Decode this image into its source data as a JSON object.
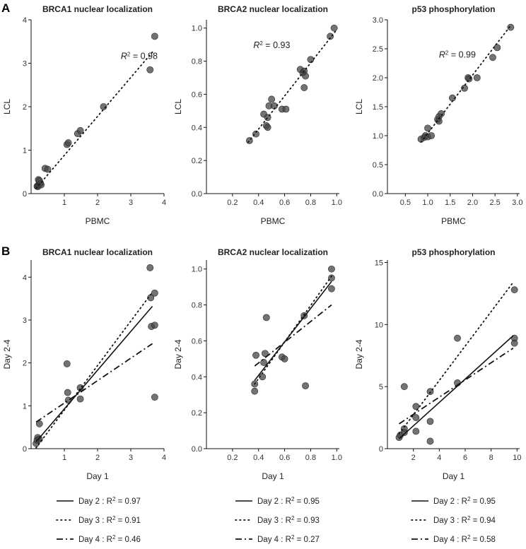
{
  "panel_labels": [
    "A",
    "B"
  ],
  "chart_data": [
    {
      "panel": "A",
      "type": "scatter",
      "title": "BRCA1 nuclear localization",
      "xlabel": "PBMC",
      "ylabel": "LCL",
      "xlim": [
        0,
        4
      ],
      "ylim": [
        0,
        4
      ],
      "xticks": [
        1,
        2,
        3,
        4
      ],
      "xtick_labels": [
        "1",
        "2",
        "3",
        "4"
      ],
      "yticks": [
        0,
        1,
        2,
        3,
        4
      ],
      "ytick_labels": [
        "0",
        "1",
        "2",
        "3",
        "4"
      ],
      "annotation": {
        "prefix": "R",
        "sup": "2",
        "suffix": " = 0.98",
        "x": 2.7,
        "y": 3.1
      },
      "points": [
        [
          0.18,
          0.17
        ],
        [
          0.2,
          0.16
        ],
        [
          0.22,
          0.2
        ],
        [
          0.25,
          0.22
        ],
        [
          0.28,
          0.24
        ],
        [
          0.3,
          0.2
        ],
        [
          0.22,
          0.32
        ],
        [
          0.25,
          0.3
        ],
        [
          0.42,
          0.58
        ],
        [
          0.5,
          0.56
        ],
        [
          1.08,
          1.13
        ],
        [
          1.12,
          1.17
        ],
        [
          1.4,
          1.38
        ],
        [
          1.48,
          1.45
        ],
        [
          2.18,
          2.0
        ],
        [
          3.58,
          2.85
        ],
        [
          3.72,
          3.62
        ]
      ],
      "lines": [
        {
          "style": "dotted",
          "x": [
            0.15,
            3.7
          ],
          "y": [
            0.12,
            3.3
          ]
        }
      ],
      "legend": []
    },
    {
      "panel": "A",
      "type": "scatter",
      "title": "BRCA2 nuclear localization",
      "xlabel": "PBMC",
      "ylabel": "LCL",
      "xlim": [
        0,
        1.02
      ],
      "ylim": [
        0,
        1.05
      ],
      "xticks": [
        0.2,
        0.4,
        0.6,
        0.8,
        1.0
      ],
      "xtick_labels": [
        "0.2",
        "0.4",
        "0.6",
        "0.8",
        "1.0"
      ],
      "yticks": [
        0,
        0.2,
        0.4,
        0.6,
        0.8,
        1.0
      ],
      "ytick_labels": [
        "0.0",
        "0.2",
        "0.4",
        "0.6",
        "0.8",
        "1.0"
      ],
      "annotation": {
        "prefix": "R",
        "sup": "2",
        "suffix": " = 0.93",
        "x": 0.36,
        "y": 0.88
      },
      "points": [
        [
          0.33,
          0.32
        ],
        [
          0.38,
          0.36
        ],
        [
          0.44,
          0.48
        ],
        [
          0.46,
          0.41
        ],
        [
          0.47,
          0.4
        ],
        [
          0.47,
          0.46
        ],
        [
          0.48,
          0.53
        ],
        [
          0.5,
          0.57
        ],
        [
          0.52,
          0.53
        ],
        [
          0.58,
          0.51
        ],
        [
          0.61,
          0.51
        ],
        [
          0.72,
          0.75
        ],
        [
          0.74,
          0.73
        ],
        [
          0.75,
          0.74
        ],
        [
          0.76,
          0.71
        ],
        [
          0.75,
          0.64
        ],
        [
          0.8,
          0.81
        ],
        [
          0.95,
          0.95
        ],
        [
          0.98,
          1.0
        ]
      ],
      "lines": [
        {
          "style": "dotted",
          "x": [
            0.32,
            0.99
          ],
          "y": [
            0.31,
            0.98
          ]
        }
      ],
      "legend": []
    },
    {
      "panel": "A",
      "type": "scatter",
      "title": "p53 phosphorylation",
      "xlabel": "PBMC",
      "ylabel": "LCL",
      "xlim": [
        0.1,
        3.05
      ],
      "ylim": [
        0,
        3.0
      ],
      "xticks": [
        0.5,
        1.0,
        1.5,
        2.0,
        2.5,
        3.0
      ],
      "xtick_labels": [
        "0.5",
        "1.0",
        "1.5",
        "2.0",
        "2.5",
        "3.0"
      ],
      "yticks": [
        0,
        0.5,
        1.0,
        1.5,
        2.0,
        2.5,
        3.0
      ],
      "ytick_labels": [
        "0.0",
        "0.5",
        "1.0",
        "1.5",
        "2.0",
        "2.5",
        "3.0"
      ],
      "annotation": {
        "prefix": "R",
        "sup": "2",
        "suffix": " = 0.99",
        "x": 1.25,
        "y": 2.35
      },
      "points": [
        [
          0.85,
          0.94
        ],
        [
          0.92,
          0.97
        ],
        [
          0.95,
          1.0
        ],
        [
          1.0,
          1.13
        ],
        [
          1.0,
          0.98
        ],
        [
          1.08,
          1.0
        ],
        [
          1.22,
          1.28
        ],
        [
          1.25,
          1.33
        ],
        [
          1.25,
          1.25
        ],
        [
          1.3,
          1.38
        ],
        [
          1.55,
          1.65
        ],
        [
          1.82,
          1.82
        ],
        [
          1.9,
          2.0
        ],
        [
          1.92,
          1.98
        ],
        [
          2.1,
          2.0
        ],
        [
          2.45,
          2.35
        ],
        [
          2.55,
          2.52
        ],
        [
          2.85,
          2.87
        ]
      ],
      "lines": [
        {
          "style": "dotted",
          "x": [
            0.85,
            2.85
          ],
          "y": [
            0.89,
            2.9
          ]
        }
      ],
      "legend": []
    },
    {
      "panel": "B",
      "type": "scatter",
      "title": "BRCA1 nuclear localization",
      "xlabel": "Day 1",
      "ylabel": "Day 2-4",
      "xlim": [
        0,
        4
      ],
      "ylim": [
        0,
        4.4
      ],
      "xticks": [
        1,
        2,
        3,
        4
      ],
      "xtick_labels": [
        "1",
        "2",
        "3",
        "4"
      ],
      "yticks": [
        0,
        1,
        2,
        3,
        4
      ],
      "ytick_labels": [
        "0",
        "1",
        "2",
        "3",
        "4"
      ],
      "points": [
        [
          0.15,
          0.12
        ],
        [
          0.18,
          0.2
        ],
        [
          0.2,
          0.26
        ],
        [
          0.25,
          0.22
        ],
        [
          0.25,
          0.58
        ],
        [
          1.08,
          1.98
        ],
        [
          1.1,
          1.31
        ],
        [
          1.12,
          1.13
        ],
        [
          1.48,
          1.42
        ],
        [
          1.48,
          1.16
        ],
        [
          3.58,
          4.22
        ],
        [
          3.6,
          3.52
        ],
        [
          3.62,
          2.85
        ],
        [
          3.72,
          3.63
        ],
        [
          3.72,
          2.88
        ],
        [
          3.72,
          1.2
        ]
      ],
      "lines": [
        {
          "style": "solid",
          "x": [
            0.15,
            3.65
          ],
          "y": [
            0.16,
            3.32
          ]
        },
        {
          "style": "dotted",
          "x": [
            0.15,
            3.65
          ],
          "y": [
            0.02,
            3.65
          ]
        },
        {
          "style": "dashdot",
          "x": [
            0.15,
            3.65
          ],
          "y": [
            0.62,
            2.45
          ]
        }
      ],
      "legend": [
        {
          "style": "solid",
          "label": "Day 2 :",
          "prefix": "R",
          "sup": "2",
          "suffix": " = 0.97"
        },
        {
          "style": "dotted",
          "label": "Day 3 :",
          "prefix": "R",
          "sup": "2",
          "suffix": " = 0.91"
        },
        {
          "style": "dashdot",
          "label": "Day 4 :",
          "prefix": "R",
          "sup": "2",
          "suffix": " = 0.46"
        }
      ]
    },
    {
      "panel": "B",
      "type": "scatter",
      "title": "BRCA2 nuclear localization",
      "xlabel": "Day 1",
      "ylabel": "Day 2-4",
      "xlim": [
        0,
        1.02
      ],
      "ylim": [
        0,
        1.05
      ],
      "xticks": [
        0.2,
        0.4,
        0.6,
        0.8,
        1.0
      ],
      "xtick_labels": [
        "0.2",
        "0.4",
        "0.6",
        "0.8",
        "1.0"
      ],
      "yticks": [
        0,
        0.2,
        0.4,
        0.6,
        0.8,
        1.0
      ],
      "ytick_labels": [
        "0.0",
        "0.2",
        "0.4",
        "0.6",
        "0.8",
        "1.0"
      ],
      "points": [
        [
          0.37,
          0.36
        ],
        [
          0.37,
          0.32
        ],
        [
          0.38,
          0.52
        ],
        [
          0.43,
          0.4
        ],
        [
          0.44,
          0.48
        ],
        [
          0.45,
          0.53
        ],
        [
          0.46,
          0.73
        ],
        [
          0.58,
          0.51
        ],
        [
          0.6,
          0.5
        ],
        [
          0.75,
          0.74
        ],
        [
          0.76,
          0.35
        ],
        [
          0.96,
          1.0
        ],
        [
          0.96,
          0.95
        ],
        [
          0.96,
          0.89
        ]
      ],
      "lines": [
        {
          "style": "solid",
          "x": [
            0.37,
            0.96
          ],
          "y": [
            0.38,
            0.93
          ]
        },
        {
          "style": "dotted",
          "x": [
            0.37,
            0.96
          ],
          "y": [
            0.36,
            0.96
          ]
        },
        {
          "style": "dashdot",
          "x": [
            0.37,
            0.96
          ],
          "y": [
            0.46,
            0.8
          ]
        }
      ],
      "legend": [
        {
          "style": "solid",
          "label": "Day 2 :",
          "prefix": "R",
          "sup": "2",
          "suffix": " = 0.95"
        },
        {
          "style": "dotted",
          "label": "Day 3 :",
          "prefix": "R",
          "sup": "2",
          "suffix": " = 0.93"
        },
        {
          "style": "dashdot",
          "label": "Day 4 :",
          "prefix": "R",
          "sup": "2",
          "suffix": " = 0.27"
        }
      ]
    },
    {
      "panel": "B",
      "type": "scatter",
      "title": "p53 phosphorylation",
      "xlabel": "Day 1",
      "ylabel": "Day 2-4",
      "xlim": [
        0,
        10.2
      ],
      "ylim": [
        0,
        15.2
      ],
      "xticks": [
        2,
        4,
        6,
        8,
        10
      ],
      "xtick_labels": [
        "2",
        "4",
        "6",
        "8",
        "10"
      ],
      "yticks": [
        0,
        5,
        10,
        15
      ],
      "ytick_labels": [
        "0",
        "5",
        "10",
        "15"
      ],
      "points": [
        [
          0.9,
          0.9
        ],
        [
          1.0,
          1.1
        ],
        [
          1.3,
          1.6
        ],
        [
          1.3,
          1.3
        ],
        [
          1.3,
          5.0
        ],
        [
          2.2,
          3.4
        ],
        [
          2.2,
          2.5
        ],
        [
          2.2,
          1.4
        ],
        [
          3.3,
          4.6
        ],
        [
          3.3,
          2.2
        ],
        [
          3.3,
          0.6
        ],
        [
          5.4,
          8.9
        ],
        [
          5.4,
          5.3
        ],
        [
          9.8,
          12.8
        ],
        [
          9.8,
          8.9
        ],
        [
          9.8,
          8.5
        ]
      ],
      "lines": [
        {
          "style": "solid",
          "x": [
            0.9,
            9.7
          ],
          "y": [
            0.8,
            9.1
          ]
        },
        {
          "style": "dotted",
          "x": [
            0.9,
            9.7
          ],
          "y": [
            1.2,
            13.4
          ]
        },
        {
          "style": "dashdot",
          "x": [
            0.9,
            9.7
          ],
          "y": [
            2.0,
            8.1
          ]
        }
      ],
      "legend": [
        {
          "style": "solid",
          "label": "Day 2 :",
          "prefix": "R",
          "sup": "2",
          "suffix": " = 0.95"
        },
        {
          "style": "dotted",
          "label": "Day 3 :",
          "prefix": "R",
          "sup": "2",
          "suffix": " = 0.94"
        },
        {
          "style": "dashdot",
          "label": "Day 4 :",
          "prefix": "R",
          "sup": "2",
          "suffix": " = 0.58"
        }
      ]
    }
  ]
}
